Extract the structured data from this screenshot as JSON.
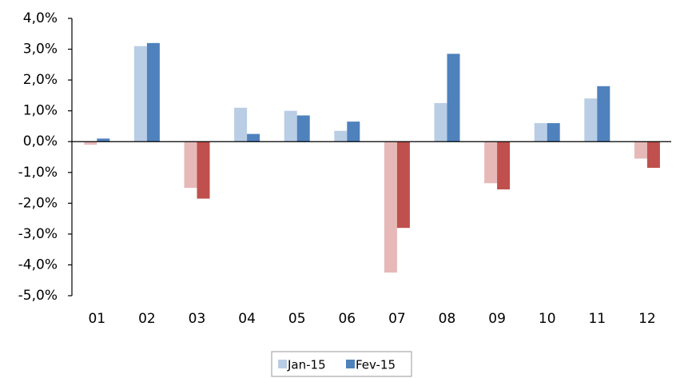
{
  "chart_data": {
    "type": "bar",
    "categories": [
      "01",
      "02",
      "03",
      "04",
      "05",
      "06",
      "07",
      "08",
      "09",
      "10",
      "11",
      "12"
    ],
    "series": [
      {
        "name": "Jan-15",
        "color": "#b9cde5",
        "negative_color": "#e6b9b8",
        "values": [
          -0.1,
          3.1,
          -1.5,
          1.1,
          1.0,
          0.35,
          -4.25,
          1.25,
          -1.35,
          0.6,
          1.4,
          -0.55
        ]
      },
      {
        "name": "Fev-15",
        "color": "#4f81bd",
        "negative_color": "#c0504d",
        "values": [
          0.1,
          3.2,
          -1.85,
          0.25,
          0.85,
          0.65,
          -2.8,
          2.85,
          -1.55,
          0.6,
          1.8,
          -0.85
        ]
      }
    ],
    "ylim": [
      -5,
      4
    ],
    "yticks": [
      {
        "value": 4,
        "label": "4,0%"
      },
      {
        "value": 3,
        "label": "3,0%"
      },
      {
        "value": 2,
        "label": "2,0%"
      },
      {
        "value": 1,
        "label": "1,0%"
      },
      {
        "value": 0,
        "label": "0,0%"
      },
      {
        "value": -1,
        "label": "-1,0%"
      },
      {
        "value": -2,
        "label": "-2,0%"
      },
      {
        "value": -3,
        "label": "-3,0%"
      },
      {
        "value": -4,
        "label": "-4,0%"
      },
      {
        "value": -5,
        "label": "-5,0%"
      }
    ],
    "legend": "bottom"
  }
}
